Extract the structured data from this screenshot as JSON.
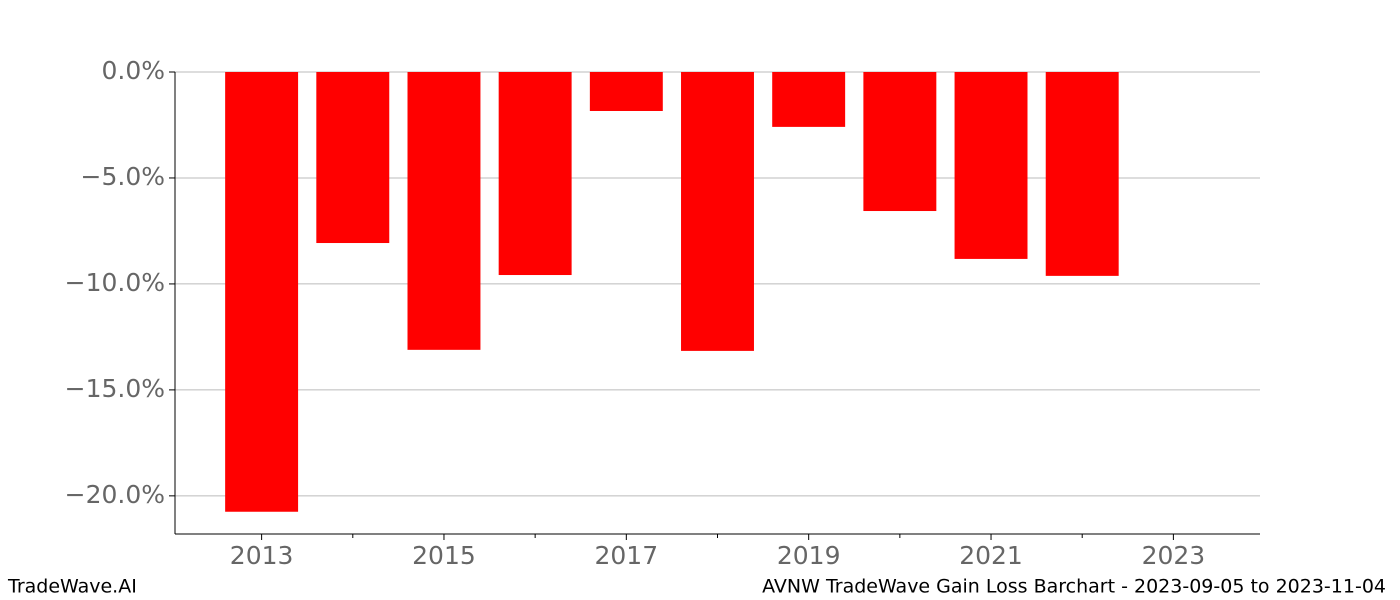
{
  "chart_data": {
    "type": "bar",
    "x": [
      2013,
      2014,
      2015,
      2016,
      2017,
      2018,
      2019,
      2020,
      2021,
      2022
    ],
    "values": [
      -20.75,
      -8.07,
      -13.11,
      -9.58,
      -1.84,
      -13.16,
      -2.59,
      -6.56,
      -8.82,
      -9.62
    ],
    "color": "#ff0000",
    "bar_width": 0.8,
    "xlim": [
      2012.05,
      2023.95
    ],
    "xticks": [
      2013,
      2015,
      2017,
      2019,
      2021,
      2023
    ],
    "xminorticks": [
      2014,
      2016,
      2018,
      2020,
      2022
    ],
    "ylim": [
      -21.8,
      0
    ],
    "yticks": [
      {
        "value": 0,
        "label": "0.0%"
      },
      {
        "value": -5,
        "label": "−5.0%"
      },
      {
        "value": -10,
        "label": "−10.0%"
      },
      {
        "value": -15,
        "label": "−15.0%"
      },
      {
        "value": -20,
        "label": "−20.0%"
      }
    ],
    "grid": true
  },
  "footer": {
    "left": "TradeWave.AI",
    "right": "AVNW TradeWave Gain Loss Barchart - 2023-09-05 to 2023-11-04"
  }
}
